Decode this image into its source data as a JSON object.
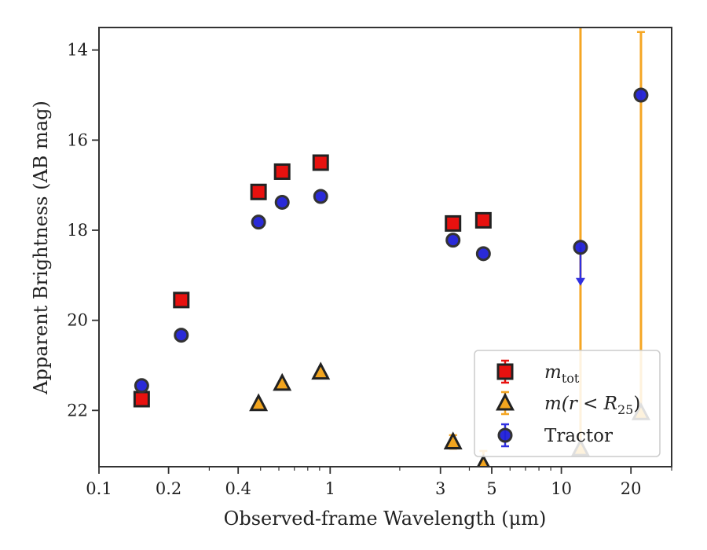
{
  "chart_data": {
    "type": "scatter",
    "xlabel": "Observed-frame Wavelength (μm)",
    "ylabel": "Apparent Brightness (AB mag)",
    "x_scale": "log",
    "xlim": [
      0.1,
      30
    ],
    "ylim": [
      23.25,
      13.5
    ],
    "y_inverted": true,
    "grid": false,
    "legend_position": "lower-right",
    "xticks": [
      {
        "value": 0.1,
        "label": "0.1"
      },
      {
        "value": 0.2,
        "label": "0.2"
      },
      {
        "value": 0.4,
        "label": "0.4"
      },
      {
        "value": 1,
        "label": "1"
      },
      {
        "value": 3,
        "label": "3"
      },
      {
        "value": 5,
        "label": "5"
      },
      {
        "value": 10,
        "label": "10"
      },
      {
        "value": 20,
        "label": "20"
      }
    ],
    "yticks": [
      {
        "value": 14,
        "label": "14"
      },
      {
        "value": 16,
        "label": "16"
      },
      {
        "value": 18,
        "label": "18"
      },
      {
        "value": 20,
        "label": "20"
      },
      {
        "value": 22,
        "label": "22"
      }
    ],
    "series": [
      {
        "name": "m_tot",
        "legend_main": "m",
        "legend_sub": "tot",
        "marker": "square",
        "face_color": "#e8110f",
        "edge_color": "#222222",
        "errbar_color": "#e8110f",
        "points": [
          {
            "x": 0.153,
            "y": 21.75
          },
          {
            "x": 0.227,
            "y": 19.55
          },
          {
            "x": 0.49,
            "y": 17.15
          },
          {
            "x": 0.62,
            "y": 16.7
          },
          {
            "x": 0.91,
            "y": 16.5
          },
          {
            "x": 3.4,
            "y": 17.85
          },
          {
            "x": 4.6,
            "y": 17.78
          }
        ]
      },
      {
        "name": "m(r < R_25)",
        "legend_main": "m(r < R",
        "legend_sub": "25",
        "legend_tail": ")",
        "marker": "triangle",
        "face_color": "#f2a51f",
        "edge_color": "#222222",
        "errbar_color": "#f5a623",
        "points": [
          {
            "x": 0.49,
            "y": 21.85
          },
          {
            "x": 0.62,
            "y": 21.4
          },
          {
            "x": 0.91,
            "y": 21.15
          },
          {
            "x": 3.4,
            "y": 22.7,
            "err": 0.15
          },
          {
            "x": 4.6,
            "y": 23.2,
            "err": 0.3
          },
          {
            "x": 12.1,
            "y": 22.85,
            "err_up": 9.6
          },
          {
            "x": 22.1,
            "y": 22.05,
            "err_up": 8.45
          }
        ]
      },
      {
        "name": "Tractor",
        "marker": "circle",
        "face_color": "#1f1fd6",
        "edge_color": "#333333",
        "errbar_color": "#3030e0",
        "points": [
          {
            "x": 0.153,
            "y": 21.45
          },
          {
            "x": 0.227,
            "y": 20.33
          },
          {
            "x": 0.49,
            "y": 17.82
          },
          {
            "x": 0.62,
            "y": 17.38
          },
          {
            "x": 0.91,
            "y": 17.25
          },
          {
            "x": 3.4,
            "y": 18.22
          },
          {
            "x": 4.6,
            "y": 18.52
          },
          {
            "x": 12.1,
            "y": 18.38,
            "upper_limit_to": 19.2
          },
          {
            "x": 22.1,
            "y": 15.0
          }
        ]
      }
    ]
  }
}
